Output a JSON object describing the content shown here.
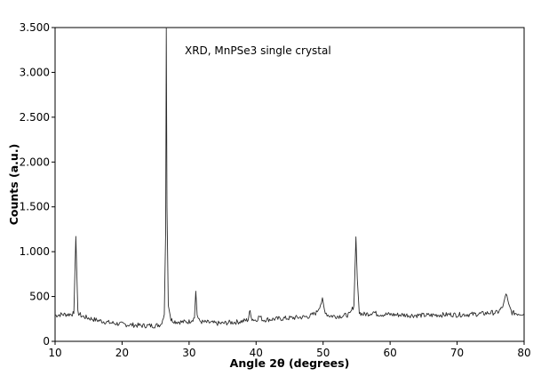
{
  "chart_data": {
    "type": "line",
    "title": "",
    "annotation": "XRD, MnPSe3 single crystal",
    "xlabel": "Angle 2θ (degrees)",
    "ylabel": "Counts (a.u.)",
    "xlim": [
      10,
      80
    ],
    "ylim": [
      0,
      3500
    ],
    "x_ticks": [
      10,
      20,
      30,
      40,
      50,
      60,
      70,
      80
    ],
    "x_tick_labels": [
      "10",
      "20",
      "30",
      "40",
      "50",
      "60",
      "70",
      "80"
    ],
    "y_ticks": [
      0,
      500,
      1000,
      1500,
      2000,
      2500,
      3000,
      3500
    ],
    "y_tick_labels": [
      "0",
      "500",
      "1.000",
      "1.500",
      "2.000",
      "2.500",
      "3.000",
      "3.500"
    ],
    "grid": false,
    "legend": "none",
    "line_color": "#2b2b2b",
    "series": [
      {
        "x": [
          10,
          11,
          12,
          12.8,
          13.1,
          13.4,
          14,
          15,
          16,
          17,
          18,
          19,
          20,
          21,
          22,
          23,
          24,
          25,
          25.8,
          26.3,
          26.5,
          26.6,
          26.7,
          26.9,
          27.3,
          28,
          29,
          30,
          30.8,
          31.0,
          31.2,
          31.5,
          32,
          33,
          34,
          35,
          36,
          37,
          38,
          38.8,
          39.1,
          39.4,
          40,
          40.5,
          41,
          42,
          43,
          44,
          45,
          46,
          47,
          48,
          49,
          49.6,
          49.9,
          50.2,
          50.6,
          51,
          52,
          53,
          54,
          54.6,
          54.9,
          55.1,
          55.4,
          56,
          57,
          57.5,
          58,
          59,
          60,
          61,
          62,
          63,
          64,
          65,
          66,
          67,
          68,
          69,
          70,
          71,
          72,
          73,
          74,
          75,
          76,
          76.8,
          77.3,
          77.7,
          78.2,
          79,
          80
        ],
        "y": [
          290,
          300,
          300,
          310,
          1170,
          320,
          280,
          260,
          240,
          225,
          210,
          200,
          190,
          185,
          180,
          175,
          175,
          175,
          190,
          300,
          1200,
          3500,
          1500,
          400,
          240,
          220,
          215,
          220,
          260,
          560,
          300,
          230,
          215,
          210,
          200,
          200,
          210,
          215,
          225,
          240,
          340,
          250,
          235,
          280,
          240,
          245,
          250,
          255,
          260,
          265,
          270,
          280,
          320,
          410,
          460,
          350,
          300,
          285,
          280,
          285,
          300,
          400,
          1165,
          700,
          320,
          300,
          310,
          330,
          305,
          300,
          300,
          295,
          295,
          290,
          290,
          290,
          290,
          295,
          295,
          300,
          295,
          300,
          300,
          305,
          310,
          320,
          320,
          380,
          540,
          400,
          320,
          310,
          310
        ]
      }
    ]
  }
}
